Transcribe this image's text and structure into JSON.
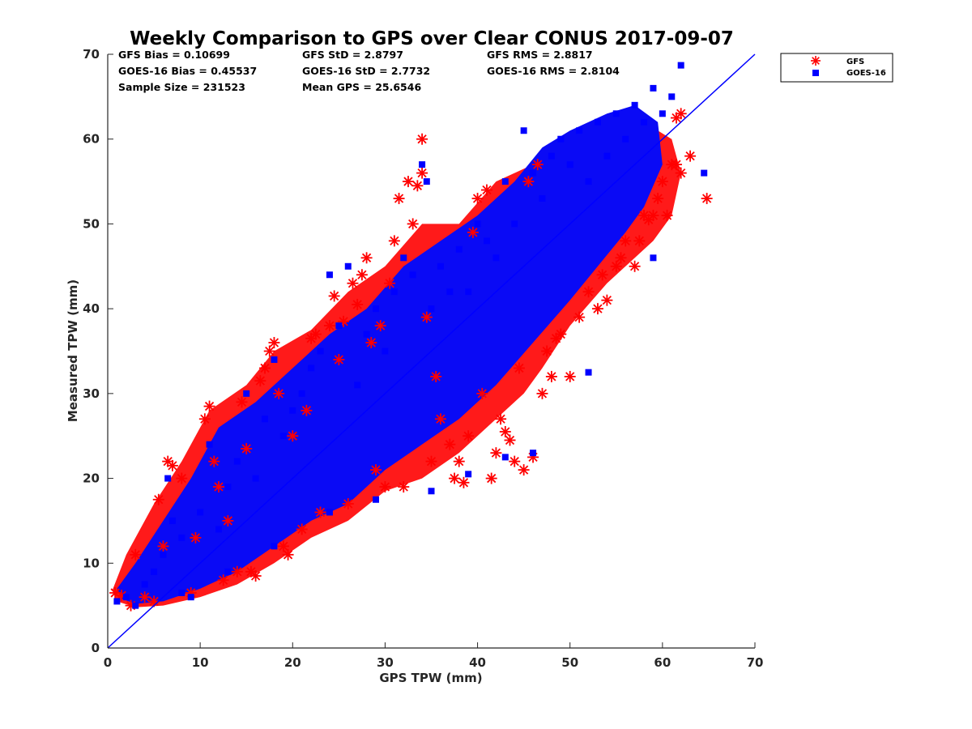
{
  "chart_data": {
    "type": "scatter",
    "title": "Weekly Comparison to GPS over Clear CONUS 2017-09-07",
    "xlabel": "GPS TPW (mm)",
    "ylabel": "Measured TPW (mm)",
    "xlim": [
      0,
      70
    ],
    "ylim": [
      0,
      70
    ],
    "xticks": [
      "0",
      "10",
      "20",
      "30",
      "40",
      "50",
      "60",
      "70"
    ],
    "yticks": [
      "0",
      "10",
      "20",
      "30",
      "40",
      "50",
      "60",
      "70"
    ],
    "grid": false,
    "legend_position": "outside-top-right",
    "reference_line": {
      "x": [
        0,
        70
      ],
      "y": [
        0,
        70
      ],
      "color": "#0000ff"
    },
    "stats": [
      {
        "text": "GFS Bias = 0.10699"
      },
      {
        "text": "GFS StD = 2.8797"
      },
      {
        "text": "GFS RMS = 2.8817"
      },
      {
        "text": "GOES-16 Bias = 0.45537"
      },
      {
        "text": "GOES-16 StD = 2.7732"
      },
      {
        "text": "GOES-16 RMS = 2.8104"
      },
      {
        "text": "Sample Size = 231523"
      },
      {
        "text": "Mean GPS = 25.6546"
      }
    ],
    "series": [
      {
        "name": "GFS",
        "marker": "asterisk",
        "color": "#ff0000",
        "points": [
          [
            0.8,
            6.5
          ],
          [
            1.5,
            6.2
          ],
          [
            2.5,
            5.0
          ],
          [
            3,
            11
          ],
          [
            4,
            6
          ],
          [
            5,
            5.5
          ],
          [
            5.5,
            17.5
          ],
          [
            6,
            12
          ],
          [
            6.5,
            22
          ],
          [
            7,
            21.5
          ],
          [
            8,
            20
          ],
          [
            9,
            6.5
          ],
          [
            9.5,
            13
          ],
          [
            10.5,
            27
          ],
          [
            11,
            28.5
          ],
          [
            11.5,
            22
          ],
          [
            12,
            19
          ],
          [
            12.5,
            8
          ],
          [
            13,
            15
          ],
          [
            14,
            9
          ],
          [
            14.5,
            29
          ],
          [
            15,
            23.5
          ],
          [
            15.5,
            9
          ],
          [
            16,
            8.5
          ],
          [
            16.5,
            31.5
          ],
          [
            17,
            33
          ],
          [
            17.5,
            35
          ],
          [
            18,
            36
          ],
          [
            18.5,
            30
          ],
          [
            19,
            12
          ],
          [
            19.5,
            11
          ],
          [
            20,
            25
          ],
          [
            21,
            14
          ],
          [
            21.5,
            28
          ],
          [
            22,
            36.5
          ],
          [
            22.5,
            37
          ],
          [
            23,
            16
          ],
          [
            24,
            38
          ],
          [
            24.5,
            41.5
          ],
          [
            25,
            34
          ],
          [
            25.5,
            38.5
          ],
          [
            26,
            17
          ],
          [
            26.5,
            43
          ],
          [
            27,
            40.5
          ],
          [
            27.5,
            44
          ],
          [
            28,
            46
          ],
          [
            28.5,
            36
          ],
          [
            29,
            21
          ],
          [
            29.5,
            38
          ],
          [
            30,
            19
          ],
          [
            30.5,
            43
          ],
          [
            31,
            48
          ],
          [
            31.5,
            53
          ],
          [
            32,
            19
          ],
          [
            32.5,
            55
          ],
          [
            33,
            50
          ],
          [
            33.5,
            54.5
          ],
          [
            34,
            56
          ],
          [
            34,
            60
          ],
          [
            34.5,
            39
          ],
          [
            35,
            22
          ],
          [
            35.5,
            32
          ],
          [
            36,
            27
          ],
          [
            37,
            24
          ],
          [
            37.5,
            20
          ],
          [
            38,
            22
          ],
          [
            38.5,
            19.5
          ],
          [
            39,
            25
          ],
          [
            39.5,
            49
          ],
          [
            40,
            53
          ],
          [
            40.5,
            30
          ],
          [
            41,
            54
          ],
          [
            41.5,
            20
          ],
          [
            42,
            23
          ],
          [
            42.5,
            27
          ],
          [
            43,
            25.5
          ],
          [
            43.5,
            24.5
          ],
          [
            44,
            22
          ],
          [
            44.5,
            33
          ],
          [
            45,
            21
          ],
          [
            45.5,
            55
          ],
          [
            46,
            22.5
          ],
          [
            46.5,
            57
          ],
          [
            47,
            30
          ],
          [
            47.5,
            35
          ],
          [
            48,
            32
          ],
          [
            48.5,
            36.5
          ],
          [
            49,
            37
          ],
          [
            50,
            32
          ],
          [
            51,
            39
          ],
          [
            52,
            42
          ],
          [
            53,
            40
          ],
          [
            53.5,
            44
          ],
          [
            54,
            41
          ],
          [
            55,
            45
          ],
          [
            55.5,
            46
          ],
          [
            56,
            48
          ],
          [
            57,
            45
          ],
          [
            57.5,
            48
          ],
          [
            58,
            51
          ],
          [
            58.5,
            50.5
          ],
          [
            59,
            51
          ],
          [
            59.5,
            53
          ],
          [
            60,
            55
          ],
          [
            60.5,
            51
          ],
          [
            61,
            57
          ],
          [
            61.5,
            57
          ],
          [
            62,
            56
          ],
          [
            63,
            58
          ],
          [
            64.8,
            53
          ],
          [
            62,
            63
          ],
          [
            61.5,
            62.5
          ]
        ]
      },
      {
        "name": "GOES-16",
        "marker": "square",
        "color": "#0000ff",
        "points": [
          [
            1,
            5.5
          ],
          [
            2,
            6
          ],
          [
            3,
            5
          ],
          [
            4,
            7.5
          ],
          [
            5,
            9
          ],
          [
            6,
            11
          ],
          [
            6.5,
            20
          ],
          [
            7,
            15
          ],
          [
            8,
            13
          ],
          [
            9,
            6
          ],
          [
            10,
            16
          ],
          [
            11,
            24
          ],
          [
            12,
            14
          ],
          [
            13,
            19
          ],
          [
            14,
            22
          ],
          [
            15,
            30
          ],
          [
            16,
            20
          ],
          [
            17,
            27
          ],
          [
            18,
            34
          ],
          [
            19,
            25
          ],
          [
            20,
            28
          ],
          [
            21,
            30
          ],
          [
            22,
            33
          ],
          [
            23,
            35
          ],
          [
            24,
            44
          ],
          [
            25,
            38
          ],
          [
            26,
            45
          ],
          [
            27,
            31
          ],
          [
            28,
            37
          ],
          [
            29,
            40
          ],
          [
            30,
            35
          ],
          [
            31,
            42
          ],
          [
            32,
            46
          ],
          [
            33,
            44
          ],
          [
            34,
            57
          ],
          [
            34.5,
            55
          ],
          [
            35,
            40
          ],
          [
            36,
            45
          ],
          [
            37,
            42
          ],
          [
            38,
            47
          ],
          [
            39,
            42
          ],
          [
            40,
            50
          ],
          [
            41,
            48
          ],
          [
            42,
            46
          ],
          [
            43,
            55
          ],
          [
            44,
            50
          ],
          [
            45,
            61
          ],
          [
            46,
            56
          ],
          [
            47,
            53
          ],
          [
            48,
            58
          ],
          [
            49,
            60
          ],
          [
            50,
            57
          ],
          [
            51,
            61
          ],
          [
            52,
            55
          ],
          [
            53,
            62
          ],
          [
            54,
            58
          ],
          [
            55,
            63
          ],
          [
            56,
            60
          ],
          [
            57,
            64
          ],
          [
            58,
            62
          ],
          [
            59,
            66
          ],
          [
            60,
            63
          ],
          [
            61,
            65
          ],
          [
            62,
            68.7
          ],
          [
            64.5,
            56
          ],
          [
            59,
            46
          ],
          [
            52,
            32.5
          ],
          [
            46,
            23
          ],
          [
            43,
            22.5
          ],
          [
            39,
            20.5
          ],
          [
            35,
            18.5
          ],
          [
            29,
            17.5
          ],
          [
            24,
            16
          ],
          [
            18,
            12
          ],
          [
            13,
            9
          ],
          [
            8,
            6.5
          ]
        ]
      }
    ]
  },
  "legend": {
    "items": [
      {
        "label": "GFS"
      },
      {
        "label": "GOES-16"
      }
    ]
  }
}
